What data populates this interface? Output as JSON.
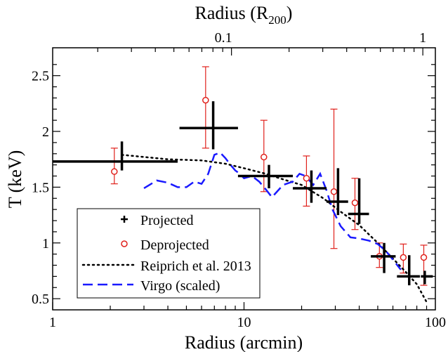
{
  "chart_data": {
    "type": "scatter",
    "xlabel": "Radius (arcmin)",
    "ylabel": "T (keV)",
    "top_axis_label": "Radius (R",
    "top_axis_label_sub": "200",
    "top_axis_label_end": ")",
    "x_scale": "log",
    "xlim": [
      1,
      100
    ],
    "ylim": [
      0.4,
      2.75
    ],
    "x_ticks": [
      {
        "value": 1,
        "label": "1"
      },
      {
        "value": 10,
        "label": "10"
      },
      {
        "value": 100,
        "label": "100"
      }
    ],
    "y_ticks": [
      {
        "value": 0.5,
        "label": "0.5"
      },
      {
        "value": 1.0,
        "label": "1"
      },
      {
        "value": 1.5,
        "label": "1.5"
      },
      {
        "value": 2.0,
        "label": "2"
      },
      {
        "value": 2.5,
        "label": "2.5"
      }
    ],
    "top_ticks": [
      {
        "value": 7.8,
        "label": "0.1"
      },
      {
        "value": 86,
        "label": "1"
      }
    ],
    "legend_position": "bottom-left",
    "grid": false,
    "series": [
      {
        "name": "Projected",
        "marker": "cross",
        "color": "#000000",
        "points": [
          {
            "x": 2.3,
            "xlo": 1.0,
            "xhi": 4.5,
            "y": 1.73,
            "ylo": 1.65,
            "yhi": 1.91
          },
          {
            "x": 6.9,
            "xlo": 4.6,
            "xhi": 9.3,
            "y": 2.03,
            "ylo": 1.84,
            "yhi": 2.27
          },
          {
            "x": 13.5,
            "xlo": 9.3,
            "xhi": 18.0,
            "y": 1.6,
            "ylo": 1.49,
            "yhi": 1.7
          },
          {
            "x": 22.5,
            "xlo": 18.0,
            "xhi": 27.0,
            "y": 1.49,
            "ylo": 1.36,
            "yhi": 1.65
          },
          {
            "x": 31.0,
            "xlo": 27.0,
            "xhi": 35.0,
            "y": 1.37,
            "ylo": 1.25,
            "yhi": 1.67
          },
          {
            "x": 40.0,
            "xlo": 35.0,
            "xhi": 45.0,
            "y": 1.26,
            "ylo": 1.17,
            "yhi": 1.58
          },
          {
            "x": 54.0,
            "xlo": 46.0,
            "xhi": 62.0,
            "y": 0.88,
            "ylo": 0.73,
            "yhi": 1.0
          },
          {
            "x": 73.0,
            "xlo": 63.0,
            "xhi": 83.0,
            "y": 0.7,
            "ylo": 0.62,
            "yhi": 0.89
          },
          {
            "x": 88.0,
            "xlo": 84.0,
            "xhi": 97.0,
            "y": 0.7,
            "ylo": 0.63,
            "yhi": 0.75
          }
        ]
      },
      {
        "name": "Deprojected",
        "marker": "circle",
        "color": "#e0201b",
        "points": [
          {
            "x": 2.1,
            "y": 1.64,
            "ylo": 1.53,
            "yhi": 1.85
          },
          {
            "x": 6.3,
            "y": 2.28,
            "ylo": 1.85,
            "yhi": 2.58
          },
          {
            "x": 12.7,
            "y": 1.77,
            "ylo": 1.46,
            "yhi": 2.1
          },
          {
            "x": 21.2,
            "y": 1.58,
            "ylo": 1.33,
            "yhi": 1.78
          },
          {
            "x": 29.5,
            "y": 1.46,
            "ylo": 0.95,
            "yhi": 2.2
          },
          {
            "x": 38.0,
            "y": 1.36,
            "ylo": 1.12,
            "yhi": 1.58
          },
          {
            "x": 51.0,
            "y": 0.88,
            "ylo": 0.78,
            "yhi": 1.0
          },
          {
            "x": 68.0,
            "y": 0.87,
            "ylo": 0.73,
            "yhi": 0.99
          },
          {
            "x": 87.0,
            "y": 0.87,
            "ylo": 0.62,
            "yhi": 0.98
          }
        ]
      },
      {
        "name": "Reiprich et al. 2013",
        "marker": "dotted-line",
        "color": "#000000",
        "x": [
          2.3,
          4.0,
          6.0,
          8.0,
          10.0,
          13.0,
          16.0,
          20.0,
          26.0,
          32.0,
          40.0,
          50.0,
          60.0,
          70.0,
          80.0,
          90.0
        ],
        "y": [
          1.79,
          1.75,
          1.74,
          1.71,
          1.67,
          1.62,
          1.57,
          1.52,
          1.4,
          1.28,
          1.16,
          1.0,
          0.86,
          0.74,
          0.63,
          0.47
        ]
      },
      {
        "name": "Virgo (scaled)",
        "marker": "dashed-line",
        "color": "#1a1aff",
        "x": [
          3.0,
          3.5,
          4.0,
          4.5,
          5.0,
          5.5,
          6.0,
          6.5,
          7.0,
          7.5,
          8.0,
          8.5,
          9.0,
          9.5,
          10.0,
          11.0,
          12.0,
          13.0,
          14.0,
          16.0,
          18.0,
          19.5,
          21.0,
          23.0,
          25.0,
          27.0,
          29.0,
          32.0,
          36.0,
          40.0,
          45.0,
          50.0,
          55.0,
          60.0,
          66.0
        ],
        "y": [
          1.49,
          1.56,
          1.54,
          1.5,
          1.5,
          1.55,
          1.53,
          1.62,
          1.79,
          1.81,
          1.76,
          1.7,
          1.65,
          1.62,
          1.58,
          1.6,
          1.55,
          1.48,
          1.41,
          1.52,
          1.55,
          1.62,
          1.6,
          1.52,
          1.62,
          1.47,
          1.3,
          1.15,
          1.05,
          1.04,
          1.02,
          0.99,
          0.93,
          0.85,
          0.76
        ]
      }
    ]
  }
}
